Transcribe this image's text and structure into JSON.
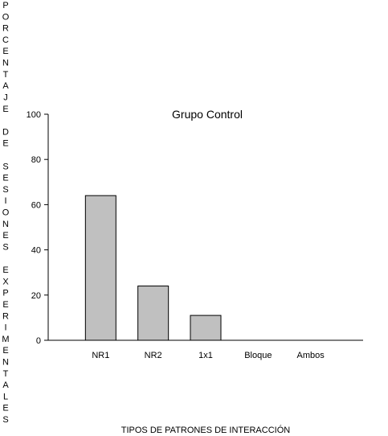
{
  "chart_data": {
    "type": "bar",
    "title": "Grupo Control",
    "xlabel": "TIPOS DE PATRONES DE INTERACCIÓN",
    "ylabel": "PORCENTAJE DE SESIONES EXPERIMENTALES",
    "categories": [
      "NR1",
      "NR2",
      "1x1",
      "Bloque",
      "Ambos"
    ],
    "values": [
      64,
      24,
      11,
      0,
      0
    ],
    "ylim": [
      0,
      100
    ],
    "yticks": [
      "0",
      "20",
      "40",
      "60",
      "80",
      "100"
    ],
    "bar_color": "#c0c0c0",
    "grid": false,
    "legend": "none"
  }
}
